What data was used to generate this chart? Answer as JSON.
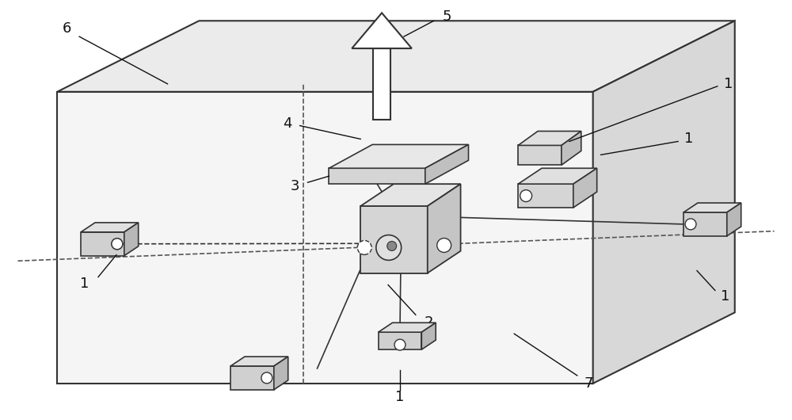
{
  "bg_color": "#ffffff",
  "line_color": "#333333",
  "box_fill": "#d0d0d0",
  "box_edge": "#333333",
  "dashed_color": "#555555",
  "label_color": "#111111",
  "label_fontsize": 13,
  "label_fontstyle": "normal"
}
